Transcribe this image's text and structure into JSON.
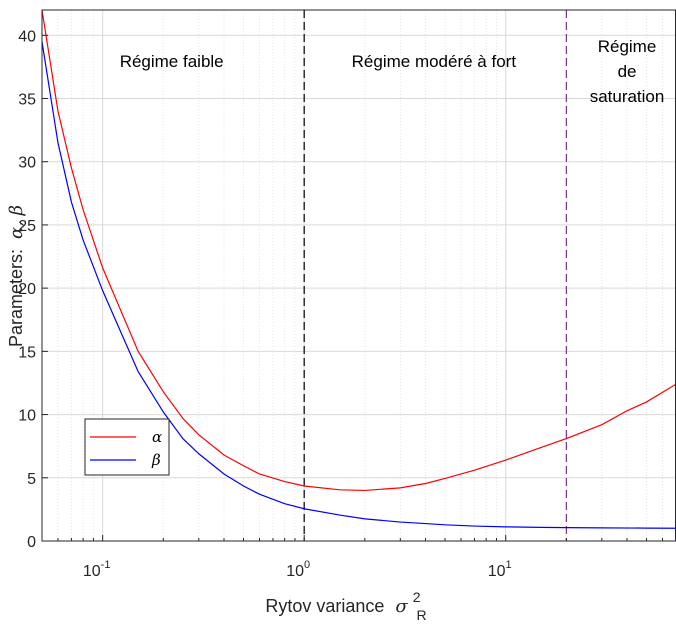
{
  "chart_data": {
    "type": "line",
    "xscale": "log",
    "xlim": [
      0.05,
      70
    ],
    "ylim": [
      0,
      42
    ],
    "grid": true,
    "legend_position": "bottom-left",
    "xlabel_text": "Rytov variance",
    "xlabel_symbol": "σ",
    "xlabel_sup": "2",
    "xlabel_sub": "R",
    "ylabel_text": "Parameters:",
    "ylabel_symbols": "α, β",
    "xticks": [
      {
        "value": 0.1,
        "base": "10",
        "exp": "-1"
      },
      {
        "value": 1,
        "base": "10",
        "exp": "0"
      },
      {
        "value": 10,
        "base": "10",
        "exp": "1"
      }
    ],
    "yticks": [
      "0",
      "5",
      "10",
      "15",
      "20",
      "25",
      "30",
      "35",
      "40"
    ],
    "regions": [
      {
        "label": "Régime faible",
        "x_center": 0.22,
        "lines": [
          "Régime faible"
        ]
      },
      {
        "label": "Régime modéré à fort",
        "x_center": 4.4,
        "lines": [
          "Régime modéré à fort"
        ]
      },
      {
        "label": "Régime de saturation",
        "x_center": 40,
        "lines": [
          "Régime",
          "de",
          "saturation"
        ]
      }
    ],
    "boundaries": [
      {
        "x": 1,
        "color": "#000000"
      },
      {
        "x": 20,
        "color": "#7e2f8e"
      }
    ],
    "series": [
      {
        "name": "α",
        "color": "#ff0000",
        "x": [
          0.05,
          0.06,
          0.07,
          0.08,
          0.1,
          0.15,
          0.2,
          0.25,
          0.3,
          0.4,
          0.5,
          0.6,
          0.8,
          1,
          1.5,
          2,
          3,
          4,
          5,
          7,
          10,
          15,
          20,
          30,
          40,
          50,
          70
        ],
        "y": [
          42,
          34,
          29.5,
          26.2,
          21.6,
          15,
          11.8,
          9.7,
          8.4,
          6.8,
          5.95,
          5.3,
          4.7,
          4.35,
          4.05,
          4.0,
          4.2,
          4.55,
          4.95,
          5.6,
          6.4,
          7.4,
          8.1,
          9.2,
          10.3,
          11.0,
          12.4
        ]
      },
      {
        "name": "β",
        "color": "#0000ff",
        "x": [
          0.05,
          0.06,
          0.07,
          0.08,
          0.1,
          0.15,
          0.2,
          0.25,
          0.3,
          0.4,
          0.5,
          0.6,
          0.8,
          1,
          1.5,
          2,
          3,
          4,
          5,
          7,
          10,
          15,
          20,
          30,
          50,
          70
        ],
        "y": [
          39.5,
          31.5,
          26.8,
          23.8,
          19.8,
          13.4,
          10.2,
          8.1,
          6.9,
          5.3,
          4.35,
          3.7,
          2.95,
          2.55,
          2.05,
          1.75,
          1.5,
          1.38,
          1.28,
          1.18,
          1.12,
          1.08,
          1.06,
          1.04,
          1.02,
          1.01
        ]
      }
    ]
  }
}
